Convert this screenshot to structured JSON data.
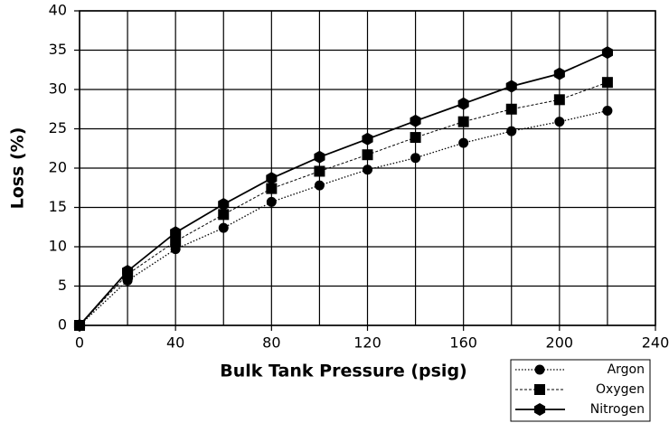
{
  "chart_data": {
    "type": "line",
    "x_label": "Bulk Tank Pressure (psig)",
    "y_label": "Loss (%)",
    "xlim": [
      0,
      240
    ],
    "xticks": [
      0,
      40,
      80,
      120,
      160,
      200,
      240
    ],
    "x_minor_grid": [
      20,
      60,
      100,
      140,
      180,
      220
    ],
    "ylim": [
      0,
      40
    ],
    "yticks": [
      0,
      5,
      10,
      15,
      20,
      25,
      30,
      35,
      40
    ],
    "grid": true,
    "legend": "lower right",
    "x": [
      0,
      20,
      40,
      60,
      80,
      100,
      120,
      140,
      160,
      180,
      200,
      220
    ],
    "series": [
      {
        "name": "Argon",
        "color": "#000000",
        "marker": "circle",
        "dash": "dotted",
        "values": [
          0,
          5.7,
          9.7,
          12.4,
          15.7,
          17.8,
          19.8,
          21.3,
          23.2,
          24.7,
          25.9,
          27.3
        ]
      },
      {
        "name": "Oxygen",
        "color": "#000000",
        "marker": "square",
        "dash": "dashed",
        "values": [
          0,
          6.5,
          10.7,
          14.1,
          17.4,
          19.6,
          21.7,
          23.9,
          25.9,
          27.5,
          28.7,
          30.9
        ]
      },
      {
        "name": "Nitrogen",
        "color": "#000000",
        "marker": "hexagon",
        "dash": "solid",
        "values": [
          0,
          6.9,
          11.8,
          15.4,
          18.7,
          21.4,
          23.7,
          26.0,
          28.2,
          30.4,
          32.0,
          34.7
        ]
      }
    ]
  }
}
